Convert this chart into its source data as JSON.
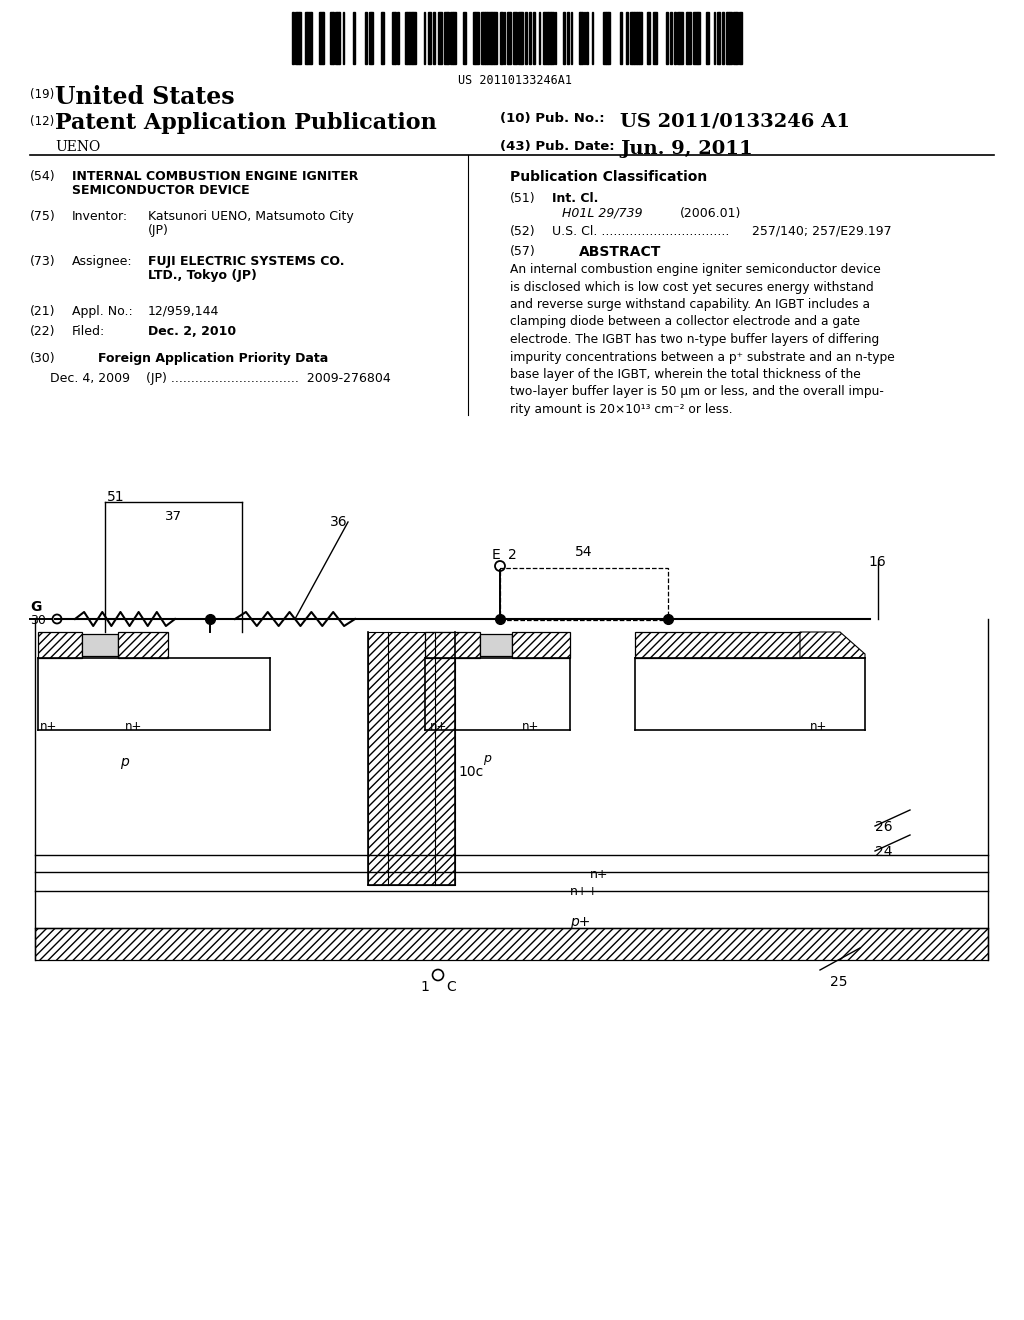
{
  "title": "US Patent Application Publication - UENO",
  "pub_number": "US 2011/0133246 A1",
  "pub_date": "Jun. 9, 2011",
  "barcode_text": "US 20110133246A1",
  "united_states": "United States",
  "pat_app_pub": "Patent Application Publication",
  "ueno": "UENO",
  "pub_no_label": "(10) Pub. No.:",
  "pub_date_label": "(43) Pub. Date:",
  "bg_color": "#ffffff",
  "text_color": "#000000",
  "abstract_text": "An internal combustion engine igniter semiconductor device\nis disclosed which is low cost yet secures energy withstand\nand reverse surge withstand capability. An IGBT includes a\nclamping diode between a collector electrode and a gate\nelectrode. The IGBT has two n-type buffer layers of differing\nimpurity concentrations between a p⁺ substrate and an n-type\nbase layer of the IGBT, wherein the total thickness of the\ntwo-layer buffer layer is 50 μm or less, and the overall impu-\nrity amount is 20×10¹³ cm⁻² or less."
}
